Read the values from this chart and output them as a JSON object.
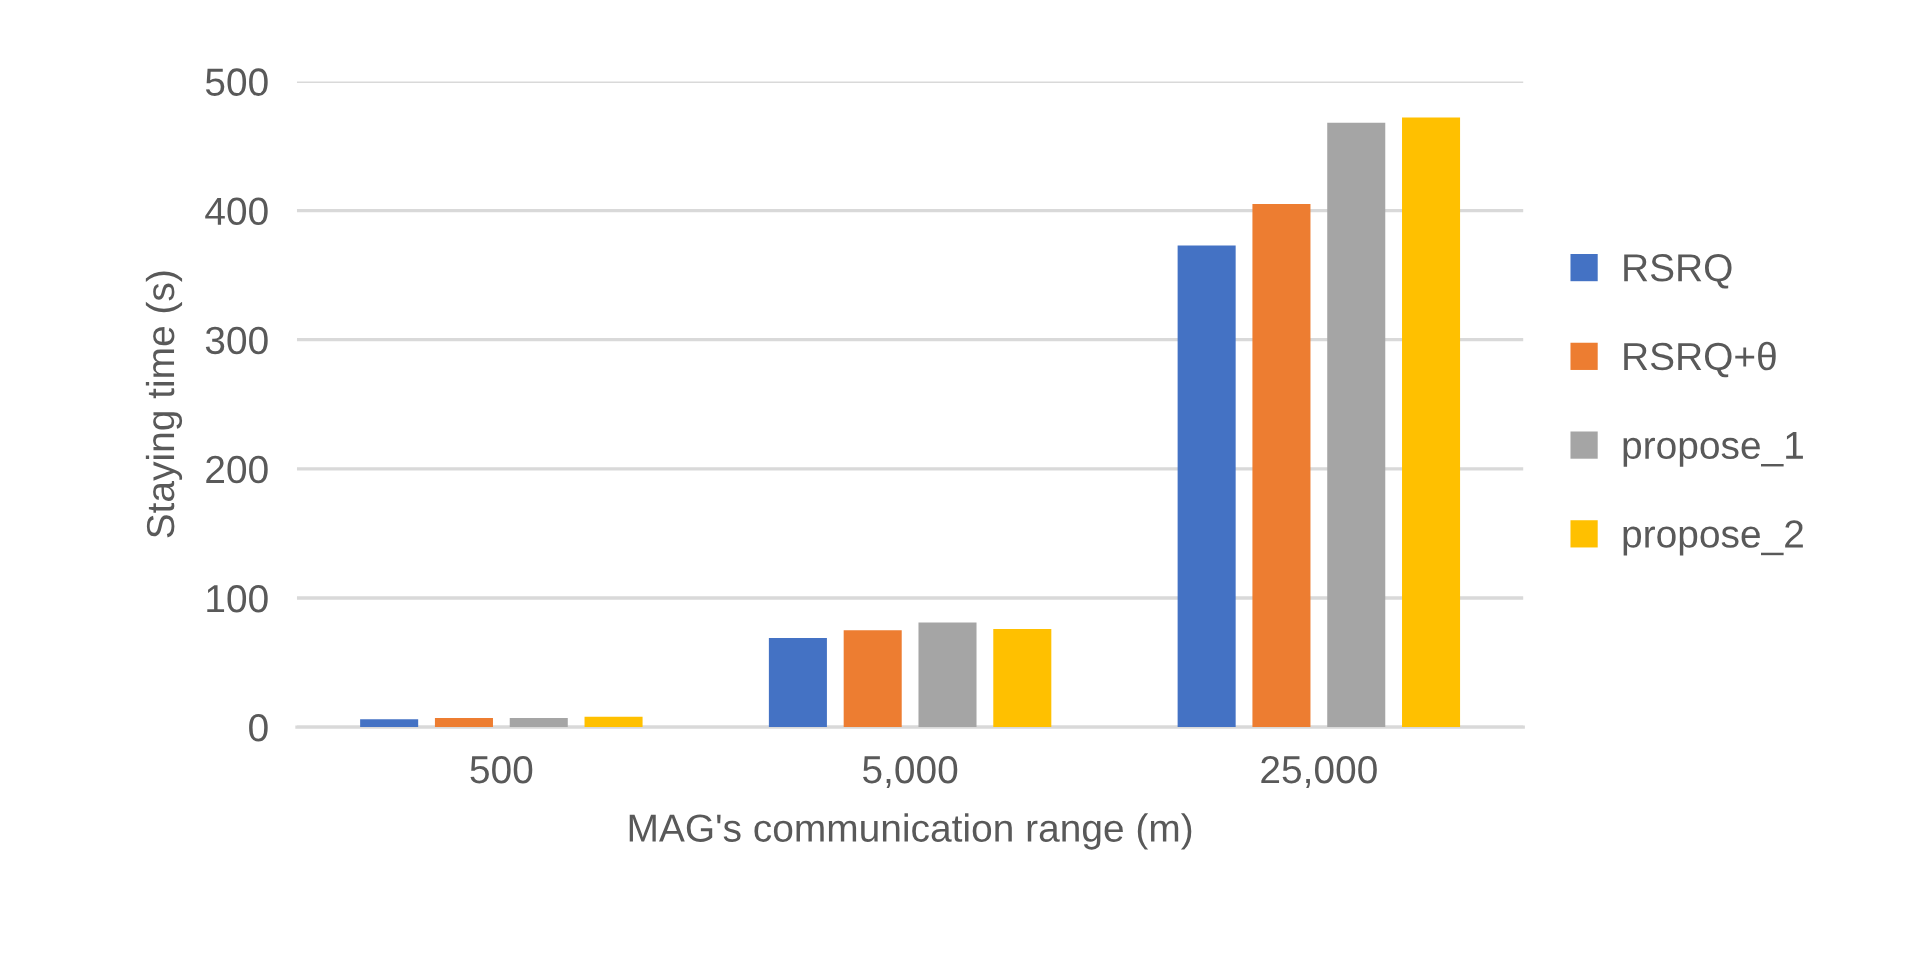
{
  "chart_data": {
    "type": "bar",
    "xlabel": "MAG's communication range (m)",
    "ylabel": "Staying time (s)",
    "categories": [
      "500",
      "5,000",
      "25,000"
    ],
    "series": [
      {
        "name": "RSRQ",
        "color": "#4472c4",
        "values": [
          6,
          69,
          373
        ]
      },
      {
        "name": "RSRQ+θ",
        "color": "#ed7d31",
        "values": [
          7,
          75,
          405
        ]
      },
      {
        "name": "propose_1",
        "color": "#a5a5a5",
        "values": [
          7,
          81,
          468
        ]
      },
      {
        "name": "propose_2",
        "color": "#ffc000",
        "values": [
          8,
          76,
          472
        ]
      }
    ],
    "ylim": [
      0,
      500
    ],
    "yticks": [
      0,
      100,
      200,
      300,
      400,
      500
    ],
    "grid": "y",
    "legend": "right"
  }
}
